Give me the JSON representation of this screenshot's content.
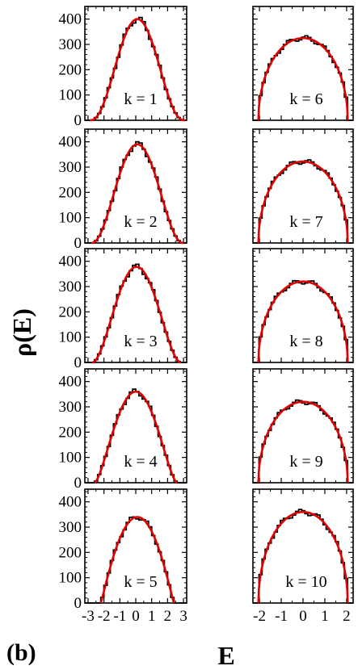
{
  "figure": {
    "panel_tag": "(b)",
    "ylabel": "ρ(E)",
    "xlabel": "E"
  },
  "chart_data": {
    "type": "line",
    "layout": "5 rows x 2 columns of panels",
    "ylabel": "ρ(E)",
    "xlabel": "E",
    "ylim": [
      0,
      450
    ],
    "yticks": [
      0,
      100,
      200,
      300,
      400
    ],
    "left_column": {
      "xlim": [
        -3.2,
        3.2
      ],
      "xticks": [
        -3,
        -2,
        -1,
        0,
        1,
        2,
        3
      ],
      "xtick_labels": [
        "-3",
        "-2",
        "-1",
        "0",
        "1",
        "2",
        "3"
      ]
    },
    "right_column": {
      "xlim": [
        -2.3,
        2.3
      ],
      "xticks": [
        -2,
        -1,
        0,
        1,
        2
      ],
      "xtick_labels": [
        "-2",
        "-1",
        "0",
        "1",
        "2"
      ]
    },
    "panels": [
      {
        "label": "k = 1",
        "column": "left",
        "row": 0,
        "peak": 400,
        "center": 0.1,
        "edge": 3.0,
        "shape": 2.6
      },
      {
        "label": "k = 2",
        "column": "left",
        "row": 1,
        "peak": 390,
        "center": 0.1,
        "edge": 2.9,
        "shape": 2.3
      },
      {
        "label": "k = 3",
        "column": "left",
        "row": 2,
        "peak": 378,
        "center": 0.05,
        "edge": 2.8,
        "shape": 2.0
      },
      {
        "label": "k = 4",
        "column": "left",
        "row": 3,
        "peak": 360,
        "center": 0.0,
        "edge": 2.6,
        "shape": 1.6
      },
      {
        "label": "k = 5",
        "column": "left",
        "row": 4,
        "peak": 340,
        "center": 0.1,
        "edge": 2.3,
        "shape": 1.1
      },
      {
        "label": "k = 6",
        "column": "right",
        "row": 0,
        "peak": 325,
        "center": 0.0,
        "edge": 2.05,
        "shape": 0.5
      },
      {
        "label": "k = 7",
        "column": "right",
        "row": 1,
        "peak": 322,
        "center": 0.0,
        "edge": 2.05,
        "shape": 0.5
      },
      {
        "label": "k = 8",
        "column": "right",
        "row": 2,
        "peak": 320,
        "center": 0.0,
        "edge": 2.05,
        "shape": 0.5
      },
      {
        "label": "k = 9",
        "column": "right",
        "row": 3,
        "peak": 320,
        "center": 0.0,
        "edge": 2.05,
        "shape": 0.5
      },
      {
        "label": "k = 10",
        "column": "right",
        "row": 4,
        "peak": 360,
        "center": 0.0,
        "edge": 2.05,
        "shape": 0.5
      }
    ],
    "series": [
      {
        "style": "histogram",
        "color": "#000000"
      },
      {
        "style": "fit curve",
        "color": "#e00000"
      }
    ],
    "grid": false,
    "legend": "none"
  }
}
